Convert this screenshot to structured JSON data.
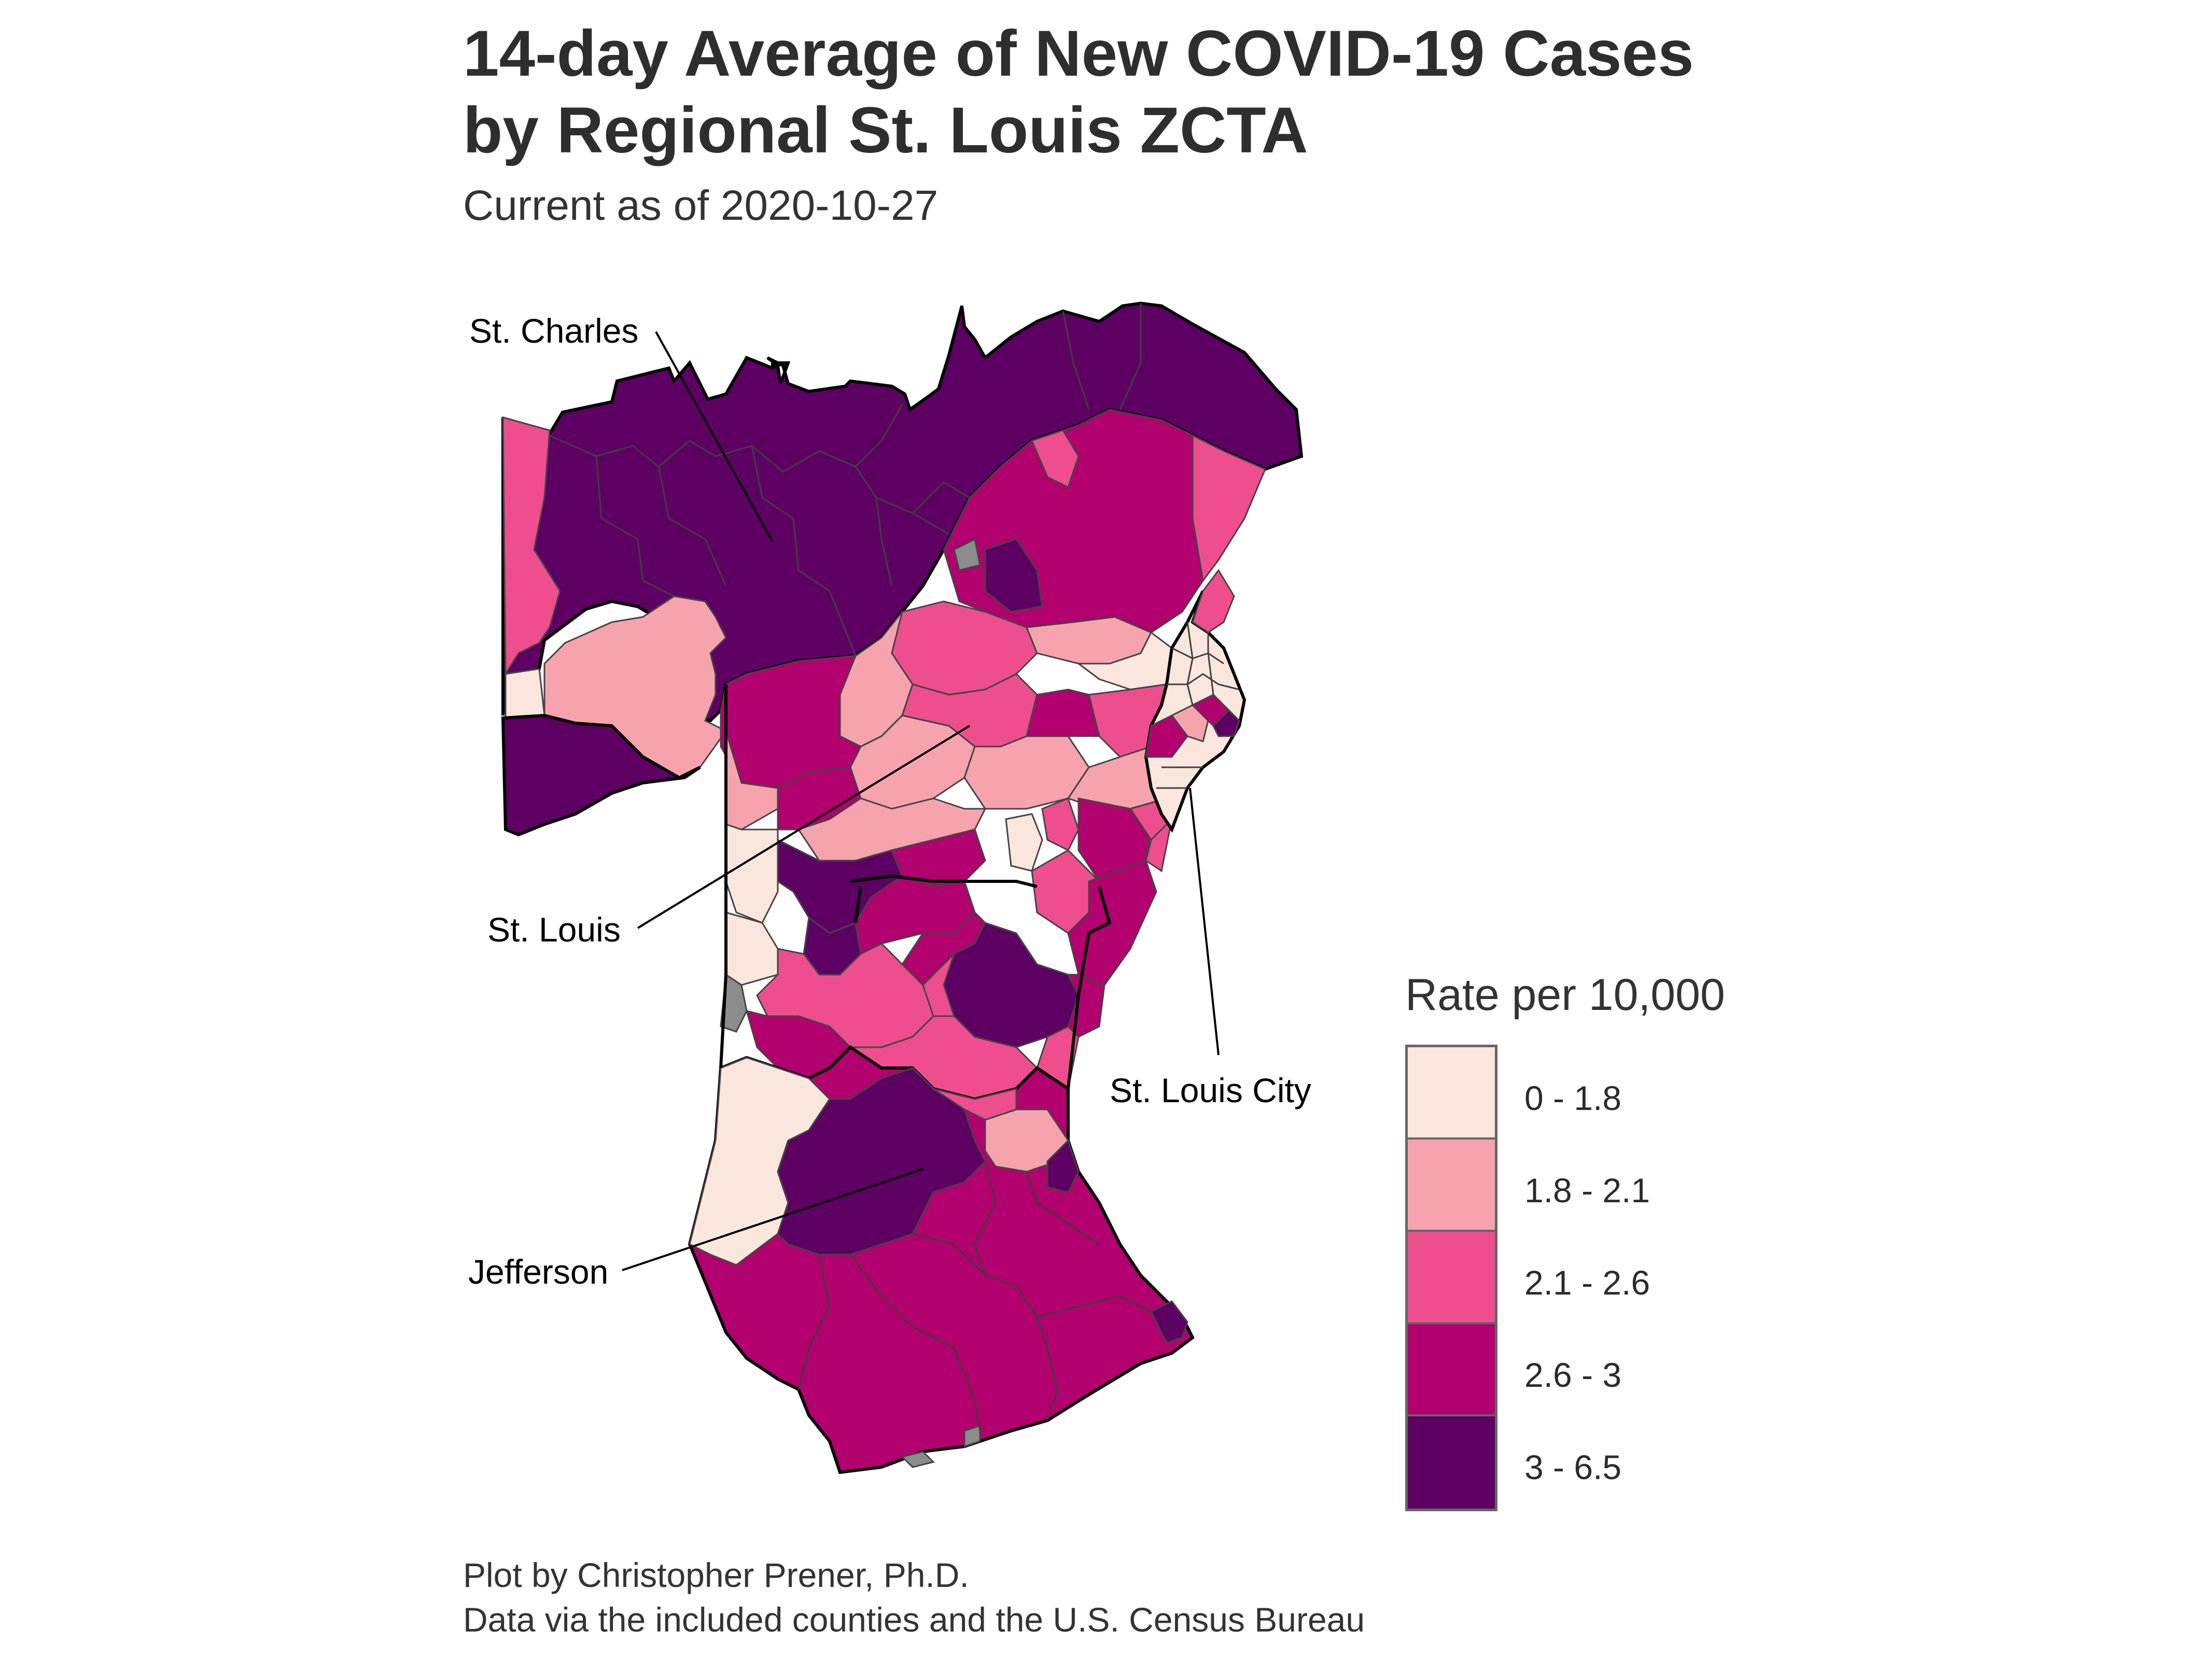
{
  "title_line1": "14-day Average of New COVID-19 Cases",
  "title_line2": "by Regional St. Louis ZCTA",
  "subtitle": "Current as of 2020-10-27",
  "callouts": {
    "st_charles": "St. Charles",
    "st_louis": "St. Louis",
    "st_louis_city": "St. Louis City",
    "jefferson": "Jefferson"
  },
  "legend": {
    "title": "Rate per 10,000",
    "bins": [
      {
        "label": "0 - 1.8",
        "color": "#fbe6de"
      },
      {
        "label": "1.8 - 2.1",
        "color": "#f6a3ae"
      },
      {
        "label": "2.1 - 2.6",
        "color": "#ef4e8e"
      },
      {
        "label": "2.6 - 3",
        "color": "#b3006f"
      },
      {
        "label": "3 - 6.5",
        "color": "#5e0063"
      }
    ],
    "missing_color": "#8c8c8c"
  },
  "caption_line1": "Plot by Christopher Prener, Ph.D.",
  "caption_line2": "Data via the included counties and the U.S. Census Bureau"
}
